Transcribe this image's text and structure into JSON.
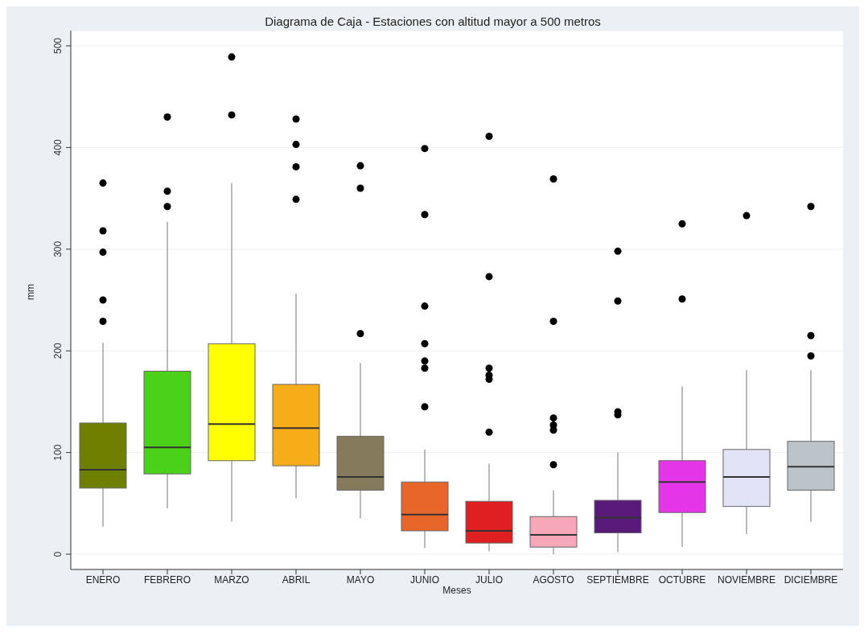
{
  "chart_data": {
    "type": "box",
    "title": "Diagrama de Caja - Estaciones con altitud mayor a 500 metros",
    "xlabel": "Meses",
    "ylabel": "mm",
    "categories": [
      "ENERO",
      "FEBRERO",
      "MARZO",
      "ABRIL",
      "MAYO",
      "JUNIO",
      "JULIO",
      "AGOSTO",
      "SEPTIEMBRE",
      "OCTUBRE",
      "NOVIEMBRE",
      "DICIEMBRE"
    ],
    "colors": [
      "#6f8000",
      "#4cd11a",
      "#ffff00",
      "#f7ad1a",
      "#857a5c",
      "#e8662a",
      "#e02020",
      "#f7a8b8",
      "#5a1a7a",
      "#e535e8",
      "#e3e3f7",
      "#bcc3c9"
    ],
    "boxes": [
      {
        "low": 27,
        "q1": 65,
        "median": 83,
        "q3": 129,
        "high": 208,
        "outliers": [
          365,
          318,
          297,
          250,
          229
        ]
      },
      {
        "low": 45,
        "q1": 79,
        "median": 105,
        "q3": 180,
        "high": 327,
        "outliers": [
          430,
          357,
          342
        ]
      },
      {
        "low": 32,
        "q1": 92,
        "median": 128,
        "q3": 207,
        "high": 365,
        "outliers": [
          489,
          432
        ]
      },
      {
        "low": 55,
        "q1": 87,
        "median": 124,
        "q3": 167,
        "high": 256,
        "outliers": [
          428,
          403,
          381,
          349
        ]
      },
      {
        "low": 35,
        "q1": 63,
        "median": 76,
        "q3": 116,
        "high": 188,
        "outliers": [
          382,
          360,
          217
        ]
      },
      {
        "low": 6,
        "q1": 23,
        "median": 39,
        "q3": 71,
        "high": 103,
        "outliers": [
          399,
          334,
          244,
          207,
          190,
          183,
          145
        ]
      },
      {
        "low": 3,
        "q1": 11,
        "median": 23,
        "q3": 52,
        "high": 89,
        "outliers": [
          411,
          273,
          183,
          176,
          172,
          120
        ]
      },
      {
        "low": 0,
        "q1": 7,
        "median": 19,
        "q3": 37,
        "high": 63,
        "outliers": [
          369,
          229,
          134,
          127,
          122,
          88
        ]
      },
      {
        "low": 2,
        "q1": 21,
        "median": 36,
        "q3": 53,
        "high": 100,
        "outliers": [
          298,
          249,
          140,
          137
        ]
      },
      {
        "low": 7,
        "q1": 41,
        "median": 71,
        "q3": 92,
        "high": 165,
        "outliers": [
          325,
          251
        ]
      },
      {
        "low": 20,
        "q1": 47,
        "median": 76,
        "q3": 103,
        "high": 181,
        "outliers": [
          333
        ]
      },
      {
        "low": 32,
        "q1": 63,
        "median": 86,
        "q3": 111,
        "high": 181,
        "outliers": [
          342,
          215,
          195
        ]
      }
    ],
    "ylim": [
      -15,
      515
    ],
    "yticks": [
      0,
      100,
      200,
      300,
      400,
      500
    ],
    "grid": "y",
    "marker": "circle"
  }
}
